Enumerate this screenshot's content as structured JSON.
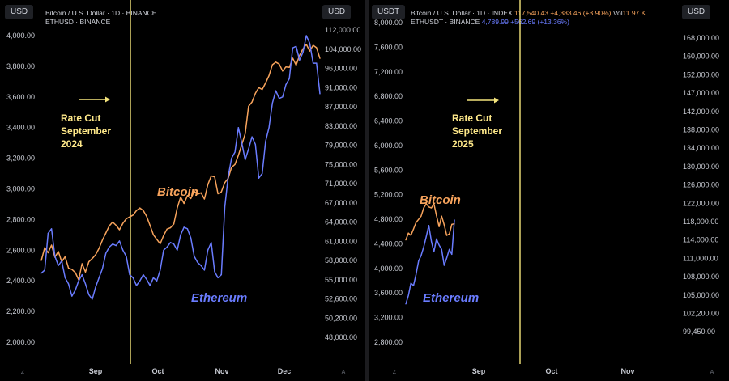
{
  "left_panel": {
    "unit_left": "USD",
    "unit_right": "USD",
    "legend_btc": "Bitcoin / U.S. Dollar · 1D · BINANCE",
    "legend_eth": "ETHUSD · BINANCE"
  },
  "right_panel": {
    "unit_left": "USDT",
    "unit_right": "USD",
    "legend_btc_name": "Bitcoin / U.S. Dollar · 1D · INDEX",
    "legend_btc_price": "117,540.43",
    "legend_btc_change": "+4,383.46 (+3.90%)",
    "legend_vol_label": "Vol",
    "legend_vol_value": "11.97 K",
    "legend_eth_name": "ETHUSDT · BINANCE",
    "legend_eth_price": "4,789.99",
    "legend_eth_change": "+562.69 (+13.36%)"
  },
  "colors": {
    "bitcoin": "#f7a35c",
    "ethereum": "#6a7cff",
    "marker": "#f4e47c",
    "annotation": "#ffe98a"
  },
  "chart_data": [
    {
      "type": "line",
      "x_labels": [
        "Sep",
        "Oct",
        "Nov",
        "Dec"
      ],
      "left_axis_ticks": [
        "4,000.00",
        "3,800.00",
        "3,600.00",
        "3,400.00",
        "3,200.00",
        "3,000.00",
        "2,800.00",
        "2,600.00",
        "2,400.00",
        "2,200.00",
        "2,000.00"
      ],
      "right_axis_ticks": [
        "112,000.00",
        "104,000.00",
        "96,000.00",
        "91,000.00",
        "87,000.00",
        "83,000.00",
        "79,000.00",
        "75,000.00",
        "71,000.00",
        "67,000.00",
        "64,000.00",
        "61,000.00",
        "58,000.00",
        "55,000.00",
        "52,600.00",
        "50,200.00",
        "48,000.00"
      ],
      "annotation": "Rate Cut\nSeptember\n2024",
      "series": [
        {
          "name": "Bitcoin",
          "axis": "right",
          "values": [
            58000,
            60000,
            59200,
            60400,
            58500,
            59400,
            57800,
            58600,
            56800,
            56600,
            56100,
            55000,
            57500,
            56200,
            57800,
            58300,
            58900,
            59900,
            61200,
            62300,
            63400,
            64000,
            63500,
            62800,
            63800,
            64500,
            64800,
            65100,
            65800,
            66200,
            65800,
            64900,
            63500,
            62000,
            61300,
            60600,
            61900,
            62900,
            63100,
            63700,
            66200,
            68200,
            66900,
            68500,
            67900,
            69400,
            68800,
            69100,
            67800,
            70800,
            72600,
            72400,
            68900,
            69300,
            71200,
            72100,
            74400,
            75000,
            76900,
            79100,
            81400,
            87100,
            88000,
            89800,
            91000,
            90600,
            92200,
            94100,
            97500,
            98600,
            97800,
            95300,
            96600,
            96400,
            100200,
            97300,
            101400,
            104100,
            106000,
            103200,
            105600,
            104600,
            100100
          ]
        },
        {
          "name": "Ethereum",
          "axis": "left",
          "values": [
            2450,
            2470,
            2710,
            2740,
            2560,
            2500,
            2530,
            2420,
            2380,
            2300,
            2340,
            2400,
            2440,
            2380,
            2310,
            2280,
            2360,
            2420,
            2480,
            2580,
            2620,
            2640,
            2630,
            2660,
            2600,
            2560,
            2440,
            2420,
            2370,
            2400,
            2440,
            2410,
            2370,
            2420,
            2400,
            2470,
            2600,
            2620,
            2650,
            2640,
            2600,
            2700,
            2750,
            2740,
            2680,
            2560,
            2520,
            2500,
            2470,
            2600,
            2650,
            2460,
            2420,
            2440,
            2880,
            3080,
            3200,
            3240,
            3400,
            3300,
            3190,
            3260,
            3340,
            3290,
            3070,
            3100,
            3310,
            3400,
            3560,
            3640,
            3590,
            3600,
            3680,
            3720,
            3920,
            3930,
            3840,
            3890,
            4000,
            3950,
            3820,
            3820,
            3620
          ]
        }
      ]
    },
    {
      "type": "line",
      "x_labels": [
        "Sep",
        "Oct",
        "Nov"
      ],
      "left_axis_ticks": [
        "8,000.00",
        "7,600.00",
        "7,200.00",
        "6,800.00",
        "6,400.00",
        "6,000.00",
        "5,600.00",
        "5,200.00",
        "4,800.00",
        "4,400.00",
        "4,000.00",
        "3,600.00",
        "3,200.00",
        "2,800.00"
      ],
      "right_axis_ticks": [
        "168,000.00",
        "160,000.00",
        "152,000.00",
        "147,000.00",
        "142,000.00",
        "138,000.00",
        "134,000.00",
        "130,000.00",
        "126,000.00",
        "122,000.00",
        "118,000.00",
        "114,000.00",
        "111,000.00",
        "108,000.00",
        "105,000.00",
        "102,200.00",
        "99,450.00"
      ],
      "annotation": "Rate Cut\nSeptember\n2025",
      "series": [
        {
          "name": "Bitcoin",
          "axis": "right",
          "values": [
            114000,
            115500,
            115000,
            116400,
            117800,
            118500,
            119200,
            121000,
            121900,
            121200,
            121000,
            121900,
            119300,
            116900,
            119200,
            117300,
            115000,
            115300,
            117400,
            117540
          ]
        },
        {
          "name": "Ethereum",
          "axis": "left",
          "values": [
            3420,
            3560,
            3760,
            3720,
            3900,
            4120,
            4210,
            4350,
            4520,
            4700,
            4440,
            4270,
            4480,
            4380,
            4310,
            4050,
            4170,
            4310,
            4230,
            4790
          ]
        }
      ]
    }
  ]
}
